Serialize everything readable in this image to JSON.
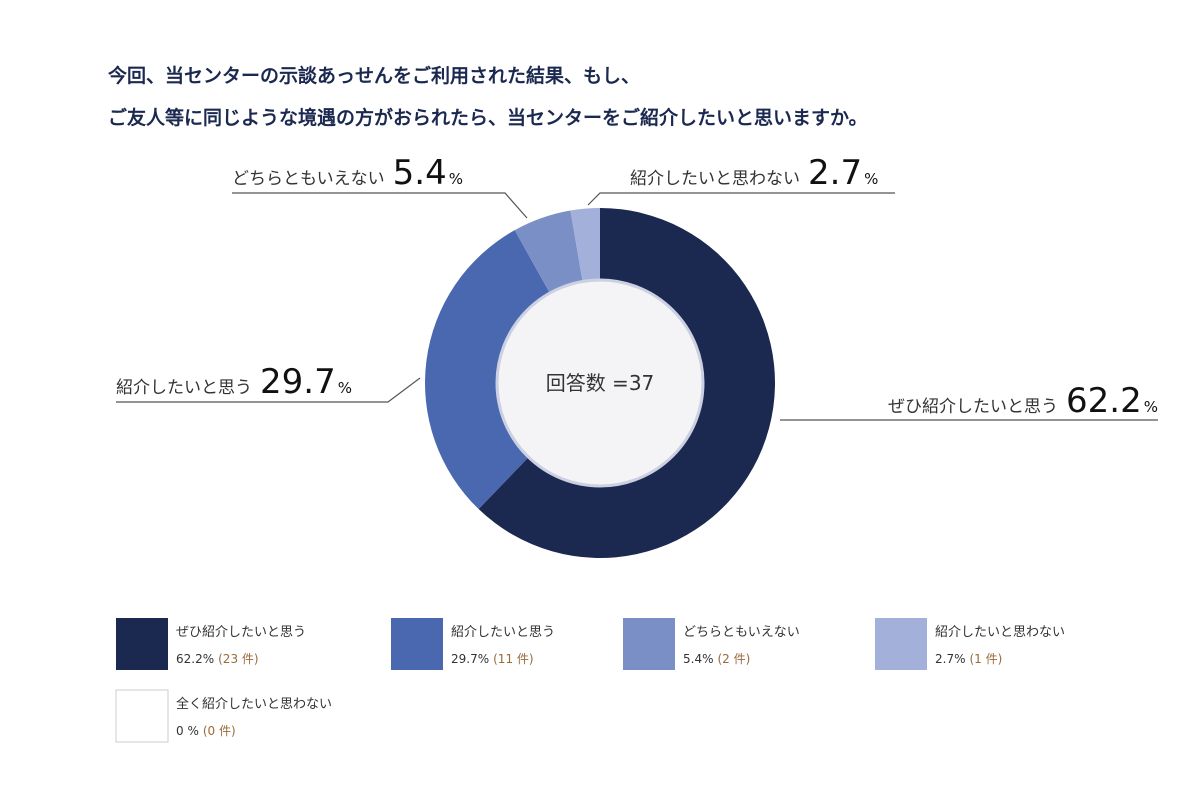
{
  "title_lines": [
    "今回、当センターの示談あっせんをご利用された結果、もし、",
    "ご友人等に同じような境遇の方がおられたら、当センターをご紹介したいと思いますか。"
  ],
  "center_label": "回答数 =37",
  "percent_sign": "%",
  "count_unit": "件",
  "chart_data": {
    "type": "pie",
    "title": "今回、当センターの示談あっせんをご利用された結果、もし、ご友人等に同じような境遇の方がおられたら、当センターをご紹介したいと思いますか。",
    "total": 37,
    "donut": true,
    "start_angle_deg": 0,
    "direction": "clockwise",
    "slices": [
      {
        "label": "ぜひ紹介したいと思う",
        "value": 62.2,
        "value_text": "62.2",
        "count": 23,
        "color": "#1b2850"
      },
      {
        "label": "紹介したいと思う",
        "value": 29.7,
        "value_text": "29.7",
        "count": 11,
        "color": "#4a68b0"
      },
      {
        "label": "どちらともいえない",
        "value": 5.4,
        "value_text": "5.4",
        "count": 2,
        "color": "#7a8fc6"
      },
      {
        "label": "紹介したいと思わない",
        "value": 2.7,
        "value_text": "2.7",
        "count": 1,
        "color": "#a3b0da"
      },
      {
        "label": "全く紹介したいと思わない",
        "value": 0,
        "value_text": "0",
        "count": 0,
        "color": "#ffffff"
      }
    ]
  }
}
